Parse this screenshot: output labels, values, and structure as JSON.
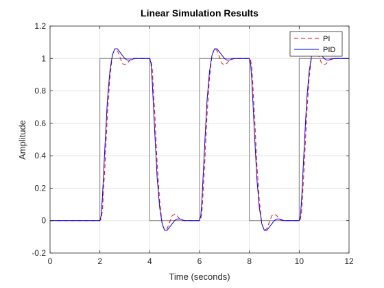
{
  "chart_data": {
    "type": "line",
    "title": "Linear Simulation Results",
    "xlabel": "Time (seconds)",
    "ylabel": "Amplitude",
    "xlim": [
      0,
      12
    ],
    "ylim": [
      -0.2,
      1.2
    ],
    "xticks": [
      "0",
      "2",
      "4",
      "6",
      "8",
      "10",
      "12"
    ],
    "yticks": [
      "-0.2",
      "0",
      "0.2",
      "0.4",
      "0.6",
      "0.8",
      "1",
      "1.2"
    ],
    "grid": true,
    "legend_position": "top-right",
    "series": [
      {
        "name": "",
        "color": "#808080",
        "style": "solid",
        "x": [
          0,
          2,
          2,
          4,
          4,
          6,
          6,
          8,
          8,
          10,
          10,
          12
        ],
        "y": [
          0,
          0,
          1,
          1,
          0,
          0,
          1,
          1,
          0,
          0,
          1,
          1
        ]
      },
      {
        "name": "PI",
        "color": "#ff0000",
        "style": "dashed",
        "x": [
          0,
          2.0,
          2.05,
          2.1,
          2.2,
          2.3,
          2.4,
          2.5,
          2.6,
          2.7,
          2.8,
          2.9,
          3.0,
          3.1,
          3.2,
          3.3,
          3.4,
          3.5,
          3.6,
          3.8,
          4.0,
          4.05,
          4.1,
          4.2,
          4.3,
          4.4,
          4.5,
          4.6,
          4.7,
          4.8,
          4.9,
          5.0,
          5.1,
          5.2,
          5.3,
          5.4,
          5.5,
          5.6,
          5.8,
          6.0,
          6.05,
          6.1,
          6.2,
          6.3,
          6.4,
          6.5,
          6.6,
          6.7,
          6.8,
          6.9,
          7.0,
          7.1,
          7.2,
          7.3,
          7.4,
          7.5,
          7.6,
          7.8,
          8.0,
          8.05,
          8.1,
          8.2,
          8.3,
          8.4,
          8.5,
          8.6,
          8.7,
          8.8,
          8.9,
          9.0,
          9.1,
          9.2,
          9.3,
          9.4,
          9.5,
          9.6,
          9.8,
          10.0,
          10.05,
          10.1,
          10.2,
          10.3,
          10.4,
          10.5,
          10.6,
          10.7,
          10.8,
          10.9,
          11.0,
          11.1,
          11.2,
          11.3,
          11.4,
          11.5,
          11.6,
          11.8,
          12.0
        ],
        "y": [
          0,
          0,
          0.01,
          0.06,
          0.33,
          0.65,
          0.88,
          1.02,
          1.06,
          1.05,
          1.01,
          0.97,
          0.96,
          0.97,
          0.99,
          1.0,
          1.0,
          1.0,
          1.0,
          1.0,
          1.0,
          0.99,
          0.94,
          0.67,
          0.35,
          0.12,
          -0.02,
          -0.06,
          -0.05,
          -0.01,
          0.03,
          0.04,
          0.03,
          0.01,
          0.0,
          0.0,
          0.0,
          0.0,
          0.0,
          0.0,
          0.01,
          0.06,
          0.33,
          0.65,
          0.88,
          1.02,
          1.06,
          1.05,
          1.01,
          0.97,
          0.96,
          0.97,
          0.99,
          1.0,
          1.0,
          1.0,
          1.0,
          1.0,
          1.0,
          0.99,
          0.94,
          0.67,
          0.35,
          0.12,
          -0.02,
          -0.06,
          -0.05,
          -0.01,
          0.03,
          0.04,
          0.03,
          0.01,
          0.0,
          0.0,
          0.0,
          0.0,
          0.0,
          0.0,
          0.01,
          0.06,
          0.33,
          0.65,
          0.88,
          1.02,
          1.06,
          1.05,
          1.01,
          0.97,
          0.96,
          0.97,
          0.99,
          1.0,
          1.0,
          1.0,
          1.0,
          1.0,
          1.0
        ]
      },
      {
        "name": "PID",
        "color": "#0000ff",
        "style": "solid",
        "x": [
          0,
          2.0,
          2.05,
          2.1,
          2.2,
          2.3,
          2.4,
          2.5,
          2.6,
          2.7,
          2.8,
          2.9,
          3.0,
          3.1,
          3.2,
          3.4,
          3.6,
          3.8,
          4.0,
          4.05,
          4.1,
          4.2,
          4.3,
          4.4,
          4.5,
          4.6,
          4.7,
          4.8,
          4.9,
          5.0,
          5.1,
          5.2,
          5.4,
          5.6,
          5.8,
          6.0,
          6.05,
          6.1,
          6.2,
          6.3,
          6.4,
          6.5,
          6.6,
          6.7,
          6.8,
          6.9,
          7.0,
          7.1,
          7.2,
          7.4,
          7.6,
          7.8,
          8.0,
          8.05,
          8.1,
          8.2,
          8.3,
          8.4,
          8.5,
          8.6,
          8.7,
          8.8,
          8.9,
          9.0,
          9.1,
          9.2,
          9.4,
          9.6,
          9.8,
          10.0,
          10.05,
          10.1,
          10.2,
          10.3,
          10.4,
          10.5,
          10.6,
          10.7,
          10.8,
          10.9,
          11.0,
          11.1,
          11.2,
          11.4,
          11.6,
          11.8,
          12.0
        ],
        "y": [
          0,
          0,
          0.03,
          0.14,
          0.45,
          0.74,
          0.92,
          1.02,
          1.06,
          1.06,
          1.04,
          1.02,
          1.0,
          0.99,
          0.99,
          1.0,
          1.0,
          1.0,
          1.0,
          0.97,
          0.86,
          0.55,
          0.26,
          0.08,
          -0.02,
          -0.06,
          -0.06,
          -0.04,
          -0.02,
          0.0,
          0.01,
          0.01,
          0.0,
          0.0,
          0.0,
          0.0,
          0.03,
          0.14,
          0.45,
          0.74,
          0.92,
          1.02,
          1.06,
          1.06,
          1.04,
          1.02,
          1.0,
          0.99,
          0.99,
          1.0,
          1.0,
          1.0,
          1.0,
          0.97,
          0.86,
          0.55,
          0.26,
          0.08,
          -0.02,
          -0.06,
          -0.06,
          -0.04,
          -0.02,
          0.0,
          0.01,
          0.01,
          0.0,
          0.0,
          0.0,
          0.0,
          0.03,
          0.14,
          0.45,
          0.74,
          0.92,
          1.02,
          1.06,
          1.06,
          1.04,
          1.02,
          1.0,
          0.99,
          0.99,
          1.0,
          1.0,
          1.0,
          1.0
        ]
      }
    ]
  }
}
